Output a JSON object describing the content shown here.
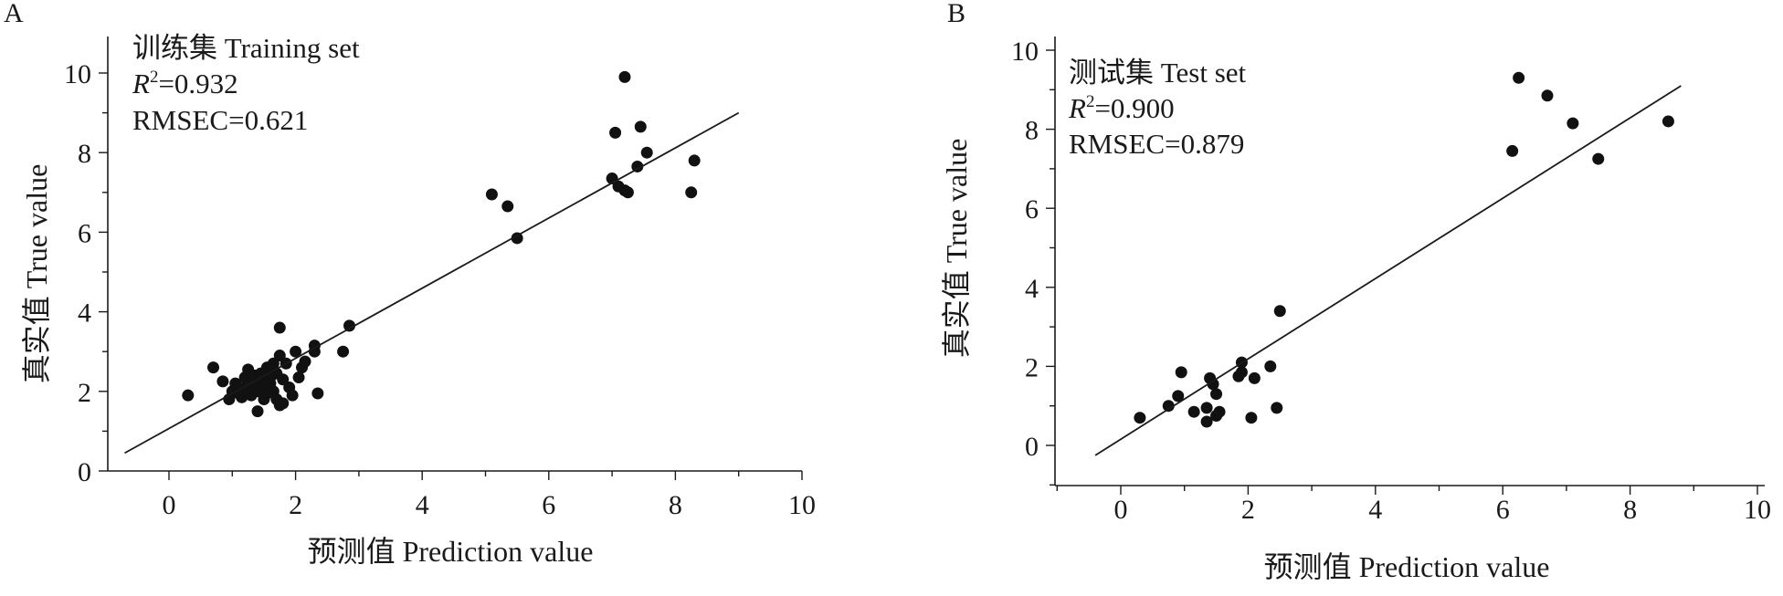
{
  "chart_data": [
    {
      "type": "scatter",
      "panel_label": "A",
      "title": "训练集 Training set",
      "r2_label": "R",
      "r2_sup": "2",
      "r2_value": "=0.932",
      "rmse": "RMSEC=0.621",
      "xlabel": "预测值 Prediction value",
      "ylabel": "真实值 True value",
      "xlim": [
        -1,
        10
      ],
      "ylim": [
        0,
        10
      ],
      "xticks": [
        0,
        2,
        4,
        6,
        8,
        10
      ],
      "yticks": [
        0,
        2,
        4,
        6,
        8,
        10
      ],
      "grid": false,
      "fit_line": [
        [
          -0.7,
          0.45
        ],
        [
          9.0,
          9.0
        ]
      ],
      "points": [
        [
          0.3,
          1.9
        ],
        [
          0.7,
          2.6
        ],
        [
          0.85,
          2.25
        ],
        [
          0.95,
          1.8
        ],
        [
          1.0,
          2.0
        ],
        [
          1.05,
          2.2
        ],
        [
          1.1,
          1.95
        ],
        [
          1.15,
          1.85
        ],
        [
          1.2,
          2.05
        ],
        [
          1.2,
          2.35
        ],
        [
          1.25,
          2.55
        ],
        [
          1.3,
          1.9
        ],
        [
          1.3,
          2.2
        ],
        [
          1.35,
          2.4
        ],
        [
          1.4,
          2.0
        ],
        [
          1.4,
          1.5
        ],
        [
          1.45,
          2.3
        ],
        [
          1.5,
          2.1
        ],
        [
          1.5,
          1.8
        ],
        [
          1.55,
          2.6
        ],
        [
          1.6,
          2.2
        ],
        [
          1.65,
          2.7
        ],
        [
          1.65,
          2.0
        ],
        [
          1.7,
          1.8
        ],
        [
          1.7,
          2.45
        ],
        [
          1.75,
          2.9
        ],
        [
          1.75,
          1.65
        ],
        [
          1.8,
          2.3
        ],
        [
          1.8,
          1.7
        ],
        [
          1.85,
          2.7
        ],
        [
          1.9,
          2.1
        ],
        [
          1.95,
          1.9
        ],
        [
          2.0,
          3.0
        ],
        [
          2.05,
          2.35
        ],
        [
          2.1,
          2.6
        ],
        [
          2.15,
          2.75
        ],
        [
          2.3,
          3.0
        ],
        [
          2.3,
          3.15
        ],
        [
          2.35,
          1.95
        ],
        [
          1.75,
          3.6
        ],
        [
          2.75,
          3.0
        ],
        [
          2.85,
          3.65
        ],
        [
          1.2,
          2.1
        ],
        [
          1.35,
          2.15
        ],
        [
          1.45,
          2.45
        ],
        [
          1.55,
          1.95
        ],
        [
          1.6,
          2.35
        ],
        [
          5.1,
          6.95
        ],
        [
          5.35,
          6.65
        ],
        [
          5.5,
          5.85
        ],
        [
          7.0,
          7.35
        ],
        [
          7.05,
          8.5
        ],
        [
          7.1,
          7.15
        ],
        [
          7.2,
          7.05
        ],
        [
          7.25,
          7.0
        ],
        [
          7.2,
          9.9
        ],
        [
          7.4,
          7.65
        ],
        [
          7.45,
          8.65
        ],
        [
          7.55,
          8.0
        ],
        [
          8.25,
          7.0
        ],
        [
          8.3,
          7.8
        ]
      ]
    },
    {
      "type": "scatter",
      "panel_label": "B",
      "title": "测试集 Test set",
      "r2_label": "R",
      "r2_sup": "2",
      "r2_value": "=0.900",
      "rmse": "RMSEC=0.879",
      "xlabel": "预测值 Prediction value",
      "ylabel": "真实值 True value",
      "xlim": [
        -1,
        10
      ],
      "ylim": [
        -1,
        10
      ],
      "xticks": [
        0,
        2,
        4,
        6,
        8,
        10
      ],
      "yticks": [
        0,
        2,
        4,
        6,
        8,
        10
      ],
      "grid": false,
      "fit_line": [
        [
          -0.4,
          -0.25
        ],
        [
          8.8,
          9.1
        ]
      ],
      "points": [
        [
          0.3,
          0.7
        ],
        [
          0.75,
          1.0
        ],
        [
          0.9,
          1.25
        ],
        [
          0.95,
          1.85
        ],
        [
          1.15,
          0.85
        ],
        [
          1.35,
          0.95
        ],
        [
          1.35,
          0.6
        ],
        [
          1.4,
          1.7
        ],
        [
          1.45,
          1.55
        ],
        [
          1.5,
          1.3
        ],
        [
          1.5,
          0.75
        ],
        [
          1.55,
          0.85
        ],
        [
          1.85,
          1.75
        ],
        [
          1.9,
          1.85
        ],
        [
          1.9,
          2.1
        ],
        [
          2.1,
          1.7
        ],
        [
          2.05,
          0.7
        ],
        [
          2.35,
          2.0
        ],
        [
          2.45,
          0.95
        ],
        [
          2.5,
          3.4
        ],
        [
          6.15,
          7.45
        ],
        [
          6.25,
          9.3
        ],
        [
          6.7,
          8.85
        ],
        [
          7.1,
          8.15
        ],
        [
          7.5,
          7.25
        ],
        [
          8.6,
          8.2
        ]
      ]
    }
  ]
}
